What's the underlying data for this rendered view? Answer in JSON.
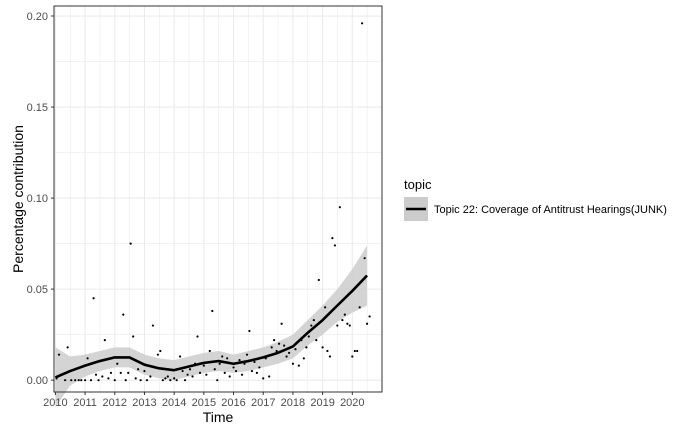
{
  "chart_data": {
    "type": "scatter",
    "title": "",
    "xlabel": "Time",
    "ylabel": "Percentage contribution",
    "xlim": [
      "2009-12-15",
      "2021-01-01"
    ],
    "ylim": [
      -0.0065,
      0.2055
    ],
    "x_ticks": [
      "2010",
      "2011",
      "2012",
      "2013",
      "2014",
      "2015",
      "2016",
      "2017",
      "2018",
      "2019",
      "2020"
    ],
    "y_ticks": [
      0.0,
      0.05,
      0.1,
      0.15,
      0.2
    ],
    "y_tick_labels": [
      "0.00",
      "0.05",
      "0.10",
      "0.15",
      "0.20"
    ],
    "grid": true,
    "legend": {
      "title": "topic",
      "position": "right",
      "entries": [
        "Topic 22: Coverage of Antitrust Hearings(JUNK)"
      ]
    },
    "colors": {
      "smooth_line": "#000000",
      "confidence_band": "#cccccc",
      "points": "#000000",
      "grid": "#ebebeb",
      "panel_border": "#333333"
    },
    "series": [
      {
        "name": "Topic 22: Coverage of Antitrust Hearings(JUNK)",
        "points": [
          [
            "2010-01-15",
            0.001
          ],
          [
            "2010-02-15",
            0.014
          ],
          [
            "2010-03-15",
            0.003
          ],
          [
            "2010-05-01",
            0.0
          ],
          [
            "2010-06-01",
            0.018
          ],
          [
            "2010-07-15",
            0.0
          ],
          [
            "2010-09-01",
            0.0
          ],
          [
            "2010-10-15",
            0.0
          ],
          [
            "2010-11-15",
            0.0
          ],
          [
            "2011-01-01",
            0.0
          ],
          [
            "2011-02-01",
            0.012
          ],
          [
            "2011-03-15",
            0.0
          ],
          [
            "2011-04-15",
            0.045
          ],
          [
            "2011-05-15",
            0.003
          ],
          [
            "2011-06-15",
            0.0
          ],
          [
            "2011-08-01",
            0.002
          ],
          [
            "2011-09-01",
            0.022
          ],
          [
            "2011-10-15",
            0.001
          ],
          [
            "2011-11-15",
            0.004
          ],
          [
            "2012-01-01",
            0.0
          ],
          [
            "2012-02-01",
            0.009
          ],
          [
            "2012-03-15",
            0.004
          ],
          [
            "2012-04-15",
            0.036
          ],
          [
            "2012-05-15",
            0.0
          ],
          [
            "2012-06-15",
            0.004
          ],
          [
            "2012-07-15",
            0.075
          ],
          [
            "2012-08-15",
            0.024
          ],
          [
            "2012-09-15",
            0.001
          ],
          [
            "2012-10-15",
            0.006
          ],
          [
            "2012-11-15",
            0.0
          ],
          [
            "2013-01-01",
            0.005
          ],
          [
            "2013-02-01",
            0.0
          ],
          [
            "2013-03-15",
            0.002
          ],
          [
            "2013-04-15",
            0.03
          ],
          [
            "2013-05-15",
            0.007
          ],
          [
            "2013-06-15",
            0.014
          ],
          [
            "2013-07-15",
            0.016
          ],
          [
            "2013-08-15",
            0.0
          ],
          [
            "2013-09-15",
            0.001
          ],
          [
            "2013-10-15",
            0.002
          ],
          [
            "2013-11-15",
            0.0
          ],
          [
            "2014-01-01",
            0.001
          ],
          [
            "2014-02-01",
            0.0
          ],
          [
            "2014-03-15",
            0.013
          ],
          [
            "2014-04-15",
            0.005
          ],
          [
            "2014-05-15",
            0.0
          ],
          [
            "2014-06-15",
            0.003
          ],
          [
            "2014-07-15",
            0.006
          ],
          [
            "2014-08-15",
            0.002
          ],
          [
            "2014-09-15",
            0.009
          ],
          [
            "2014-10-15",
            0.024
          ],
          [
            "2014-11-15",
            0.004
          ],
          [
            "2015-01-01",
            0.008
          ],
          [
            "2015-02-01",
            0.003
          ],
          [
            "2015-03-15",
            0.016
          ],
          [
            "2015-04-15",
            0.038
          ],
          [
            "2015-05-15",
            0.006
          ],
          [
            "2015-06-15",
            0.0
          ],
          [
            "2015-07-15",
            0.009
          ],
          [
            "2015-08-15",
            0.013
          ],
          [
            "2015-09-15",
            0.004
          ],
          [
            "2015-10-15",
            0.012
          ],
          [
            "2015-11-15",
            0.002
          ],
          [
            "2016-01-01",
            0.007
          ],
          [
            "2016-02-01",
            0.005
          ],
          [
            "2016-03-15",
            0.011
          ],
          [
            "2016-04-15",
            0.003
          ],
          [
            "2016-05-15",
            0.009
          ],
          [
            "2016-06-15",
            0.014
          ],
          [
            "2016-07-15",
            0.027
          ],
          [
            "2016-08-15",
            0.005
          ],
          [
            "2016-09-15",
            0.01
          ],
          [
            "2016-10-15",
            0.004
          ],
          [
            "2016-11-15",
            0.007
          ],
          [
            "2017-01-01",
            0.001
          ],
          [
            "2017-02-01",
            0.012
          ],
          [
            "2017-03-15",
            0.002
          ],
          [
            "2017-04-15",
            0.018
          ],
          [
            "2017-05-15",
            0.022
          ],
          [
            "2017-06-15",
            0.016
          ],
          [
            "2017-07-15",
            0.02
          ],
          [
            "2017-08-15",
            0.031
          ],
          [
            "2017-09-15",
            0.019
          ],
          [
            "2017-10-15",
            0.013
          ],
          [
            "2017-11-15",
            0.015
          ],
          [
            "2018-01-01",
            0.009
          ],
          [
            "2018-02-01",
            0.017
          ],
          [
            "2018-03-15",
            0.008
          ],
          [
            "2018-04-15",
            0.022
          ],
          [
            "2018-05-15",
            0.012
          ],
          [
            "2018-06-15",
            0.018
          ],
          [
            "2018-07-15",
            0.024
          ],
          [
            "2018-08-15",
            0.03
          ],
          [
            "2018-09-15",
            0.033
          ],
          [
            "2018-10-15",
            0.022
          ],
          [
            "2018-11-15",
            0.055
          ],
          [
            "2019-01-01",
            0.018
          ],
          [
            "2019-02-01",
            0.04
          ],
          [
            "2019-03-01",
            0.016
          ],
          [
            "2019-04-01",
            0.013
          ],
          [
            "2019-05-01",
            0.078
          ],
          [
            "2019-06-01",
            0.074
          ],
          [
            "2019-07-01",
            0.03
          ],
          [
            "2019-08-01",
            0.095
          ],
          [
            "2019-09-01",
            0.033
          ],
          [
            "2019-10-01",
            0.036
          ],
          [
            "2019-11-01",
            0.031
          ],
          [
            "2019-12-01",
            0.03
          ],
          [
            "2020-01-01",
            0.013
          ],
          [
            "2020-02-01",
            0.016
          ],
          [
            "2020-03-01",
            0.016
          ],
          [
            "2020-04-01",
            0.04
          ],
          [
            "2020-05-01",
            0.196
          ],
          [
            "2020-06-01",
            0.067
          ],
          [
            "2020-07-01",
            0.031
          ],
          [
            "2020-08-01",
            0.035
          ]
        ]
      }
    ],
    "smooth": {
      "method": "loess",
      "points": [
        [
          "2010-01-01",
          0.0015,
          -0.015,
          0.018
        ],
        [
          "2010-07-01",
          0.005,
          -0.003,
          0.013
        ],
        [
          "2011-01-01",
          0.008,
          0.002,
          0.014
        ],
        [
          "2011-07-01",
          0.0105,
          0.005,
          0.016
        ],
        [
          "2012-01-01",
          0.0125,
          0.007,
          0.018
        ],
        [
          "2012-07-01",
          0.0125,
          0.007,
          0.018
        ],
        [
          "2013-01-01",
          0.0085,
          0.003,
          0.014
        ],
        [
          "2013-07-01",
          0.0065,
          0.001,
          0.012
        ],
        [
          "2014-01-01",
          0.0055,
          0.0,
          0.011
        ],
        [
          "2014-07-01",
          0.0075,
          0.002,
          0.013
        ],
        [
          "2015-01-01",
          0.0095,
          0.004,
          0.015
        ],
        [
          "2015-07-01",
          0.0105,
          0.005,
          0.016
        ],
        [
          "2016-01-01",
          0.009,
          0.004,
          0.014
        ],
        [
          "2016-07-01",
          0.0105,
          0.005,
          0.016
        ],
        [
          "2017-01-01",
          0.0125,
          0.007,
          0.018
        ],
        [
          "2017-07-01",
          0.015,
          0.009,
          0.021
        ],
        [
          "2018-01-01",
          0.0185,
          0.012,
          0.025
        ],
        [
          "2018-07-01",
          0.026,
          0.019,
          0.033
        ],
        [
          "2019-01-01",
          0.033,
          0.025,
          0.041
        ],
        [
          "2019-07-01",
          0.041,
          0.032,
          0.05
        ],
        [
          "2020-01-01",
          0.049,
          0.037,
          0.061
        ],
        [
          "2020-07-01",
          0.0575,
          0.041,
          0.074
        ]
      ]
    }
  }
}
